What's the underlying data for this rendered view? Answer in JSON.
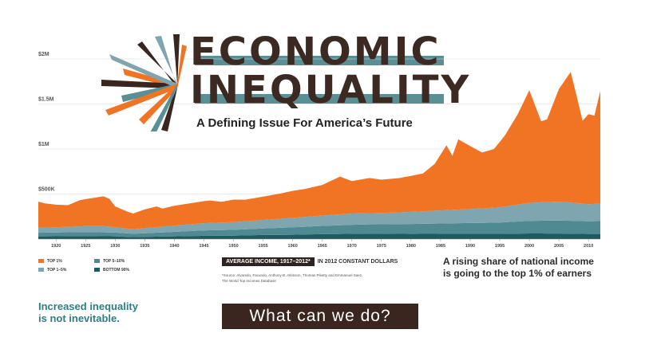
{
  "title": {
    "line1": "ECONOMIC",
    "line2": "INEQUALITY",
    "subtitle": "A Defining Issue For America’s Future"
  },
  "colors": {
    "top1": "#f07424",
    "top1_5": "#7fa6b0",
    "top5_10": "#4f8991",
    "bottom90": "#1e5a5f",
    "accent": "#2d7f86",
    "dark": "#3a261e"
  },
  "legend": {
    "items": [
      {
        "label": "TOP 1%",
        "color": "#f07424"
      },
      {
        "label": "TOP 5–10%",
        "color": "#4f8991"
      },
      {
        "label": "TOP 1–5%",
        "color": "#7fa6b0"
      },
      {
        "label": "BOTTOM 90%",
        "color": "#1e5a5f"
      }
    ]
  },
  "chart_label": {
    "box": "AVERAGE INCOME, 1917–2012*",
    "suffix": "IN 2012 CONSTANT DOLLARS"
  },
  "source": "*Source: Alvaredo, Facundo, Anthony B. Atkinson, Thomas Piketty and Emmanuel Saez, The World Top Incomes Database",
  "callout": {
    "line1": "A rising share of national income",
    "line2": "is going to the top 1% of earners"
  },
  "bottom_left": {
    "line1": "Increased inequality",
    "line2": "is not inevitable."
  },
  "cta": {
    "label": "What can we do?"
  },
  "chart_data": {
    "type": "area",
    "stacked": true,
    "title": "",
    "xlabel": "",
    "ylabel": "",
    "ylim": [
      0,
      2000000
    ],
    "xlim": [
      1917,
      2012
    ],
    "yticks": [
      {
        "value": 500000,
        "label": "$500K"
      },
      {
        "value": 1000000,
        "label": "$1M"
      },
      {
        "value": 1500000,
        "label": "$1.5M"
      },
      {
        "value": 2000000,
        "label": "$2M"
      }
    ],
    "xticks": [
      1920,
      1925,
      1930,
      1935,
      1940,
      1945,
      1950,
      1955,
      1960,
      1965,
      1970,
      1975,
      1980,
      1985,
      1990,
      1995,
      2000,
      2005,
      2010
    ],
    "grid": true,
    "legend_position": "bottom-left",
    "series": [
      {
        "name": "BOTTOM 90%",
        "color": "#1e5a5f",
        "points": [
          [
            1917,
            30000
          ],
          [
            1925,
            33000
          ],
          [
            1930,
            30000
          ],
          [
            1933,
            22000
          ],
          [
            1940,
            30000
          ],
          [
            1945,
            36000
          ],
          [
            1950,
            38000
          ],
          [
            1955,
            45000
          ],
          [
            1960,
            48000
          ],
          [
            1965,
            54000
          ],
          [
            1970,
            58000
          ],
          [
            1973,
            60000
          ],
          [
            1980,
            57000
          ],
          [
            1985,
            58000
          ],
          [
            1990,
            58000
          ],
          [
            1995,
            58000
          ],
          [
            2000,
            62000
          ],
          [
            2005,
            61000
          ],
          [
            2010,
            57000
          ],
          [
            2012,
            57000
          ]
        ]
      },
      {
        "name": "TOP 5–10%",
        "color": "#4f8991",
        "points": [
          [
            1917,
            40000
          ],
          [
            1925,
            45000
          ],
          [
            1930,
            42000
          ],
          [
            1933,
            36000
          ],
          [
            1940,
            50000
          ],
          [
            1945,
            60000
          ],
          [
            1950,
            65000
          ],
          [
            1955,
            72000
          ],
          [
            1960,
            82000
          ],
          [
            1965,
            92000
          ],
          [
            1970,
            100000
          ],
          [
            1975,
            105000
          ],
          [
            1980,
            110000
          ],
          [
            1985,
            115000
          ],
          [
            1990,
            120000
          ],
          [
            1995,
            125000
          ],
          [
            2000,
            140000
          ],
          [
            2005,
            145000
          ],
          [
            2010,
            140000
          ],
          [
            2012,
            142000
          ]
        ]
      },
      {
        "name": "TOP 1–5%",
        "color": "#7fa6b0",
        "points": [
          [
            1917,
            55000
          ],
          [
            1925,
            65000
          ],
          [
            1928,
            70000
          ],
          [
            1930,
            60000
          ],
          [
            1933,
            50000
          ],
          [
            1940,
            70000
          ],
          [
            1945,
            80000
          ],
          [
            1950,
            85000
          ],
          [
            1955,
            95000
          ],
          [
            1960,
            105000
          ],
          [
            1965,
            115000
          ],
          [
            1970,
            125000
          ],
          [
            1975,
            125000
          ],
          [
            1980,
            135000
          ],
          [
            1985,
            145000
          ],
          [
            1990,
            155000
          ],
          [
            1995,
            170000
          ],
          [
            2000,
            200000
          ],
          [
            2005,
            210000
          ],
          [
            2008,
            200000
          ],
          [
            2010,
            190000
          ],
          [
            2012,
            195000
          ]
        ]
      },
      {
        "name": "TOP 1%",
        "color": "#f07424",
        "points": [
          [
            1917,
            290000
          ],
          [
            1918,
            270000
          ],
          [
            1920,
            250000
          ],
          [
            1922,
            240000
          ],
          [
            1924,
            290000
          ],
          [
            1926,
            310000
          ],
          [
            1928,
            330000
          ],
          [
            1929,
            310000
          ],
          [
            1930,
            230000
          ],
          [
            1932,
            190000
          ],
          [
            1933,
            175000
          ],
          [
            1935,
            210000
          ],
          [
            1937,
            230000
          ],
          [
            1938,
            200000
          ],
          [
            1940,
            220000
          ],
          [
            1942,
            230000
          ],
          [
            1944,
            240000
          ],
          [
            1946,
            250000
          ],
          [
            1948,
            230000
          ],
          [
            1950,
            250000
          ],
          [
            1952,
            240000
          ],
          [
            1955,
            260000
          ],
          [
            1958,
            280000
          ],
          [
            1960,
            300000
          ],
          [
            1962,
            310000
          ],
          [
            1965,
            340000
          ],
          [
            1968,
            420000
          ],
          [
            1970,
            360000
          ],
          [
            1973,
            390000
          ],
          [
            1975,
            370000
          ],
          [
            1978,
            380000
          ],
          [
            1980,
            400000
          ],
          [
            1982,
            420000
          ],
          [
            1984,
            520000
          ],
          [
            1986,
            720000
          ],
          [
            1987,
            600000
          ],
          [
            1988,
            780000
          ],
          [
            1990,
            700000
          ],
          [
            1992,
            620000
          ],
          [
            1994,
            650000
          ],
          [
            1996,
            800000
          ],
          [
            1998,
            1000000
          ],
          [
            2000,
            1250000
          ],
          [
            2002,
            900000
          ],
          [
            2003,
            920000
          ],
          [
            2005,
            1250000
          ],
          [
            2007,
            1450000
          ],
          [
            2009,
            920000
          ],
          [
            2010,
            1000000
          ],
          [
            2011,
            980000
          ],
          [
            2012,
            1250000
          ]
        ]
      }
    ]
  }
}
